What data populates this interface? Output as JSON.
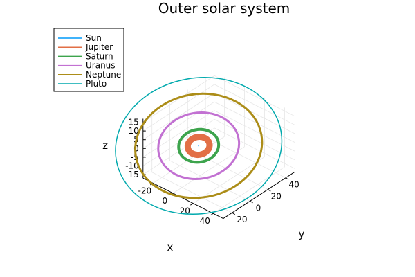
{
  "chart_data": {
    "type": "line",
    "subtype": "3d-orbits",
    "title": "Outer solar system",
    "xlabel": "x",
    "ylabel": "y",
    "zlabel": "z",
    "xticks": [
      -20,
      0,
      20,
      40
    ],
    "yticks": [
      -20,
      0,
      20,
      40
    ],
    "zticks": [
      -15,
      -10,
      -5,
      0,
      5,
      10,
      15
    ],
    "xlim": [
      -30,
      50
    ],
    "ylim": [
      -30,
      50
    ],
    "zlim": [
      -17,
      17
    ],
    "grid": true,
    "legend_position": "top-left",
    "series": [
      {
        "name": "Sun",
        "color": "#009AFA",
        "orbit_radius": 0,
        "line_width": 1
      },
      {
        "name": "Jupiter",
        "color": "#E26F46",
        "orbit_radius": 5.2,
        "line_width": 9
      },
      {
        "name": "Saturn",
        "color": "#3DA44D",
        "orbit_radius": 9.5,
        "line_width": 4
      },
      {
        "name": "Uranus",
        "color": "#C271D2",
        "orbit_radius": 19.2,
        "line_width": 3
      },
      {
        "name": "Neptune",
        "color": "#AC8D18",
        "orbit_radius": 30.1,
        "line_width": 3
      },
      {
        "name": "Pluto",
        "color": "#00A9AD",
        "orbit_radius": 39.5,
        "line_width": 1.5
      }
    ]
  }
}
